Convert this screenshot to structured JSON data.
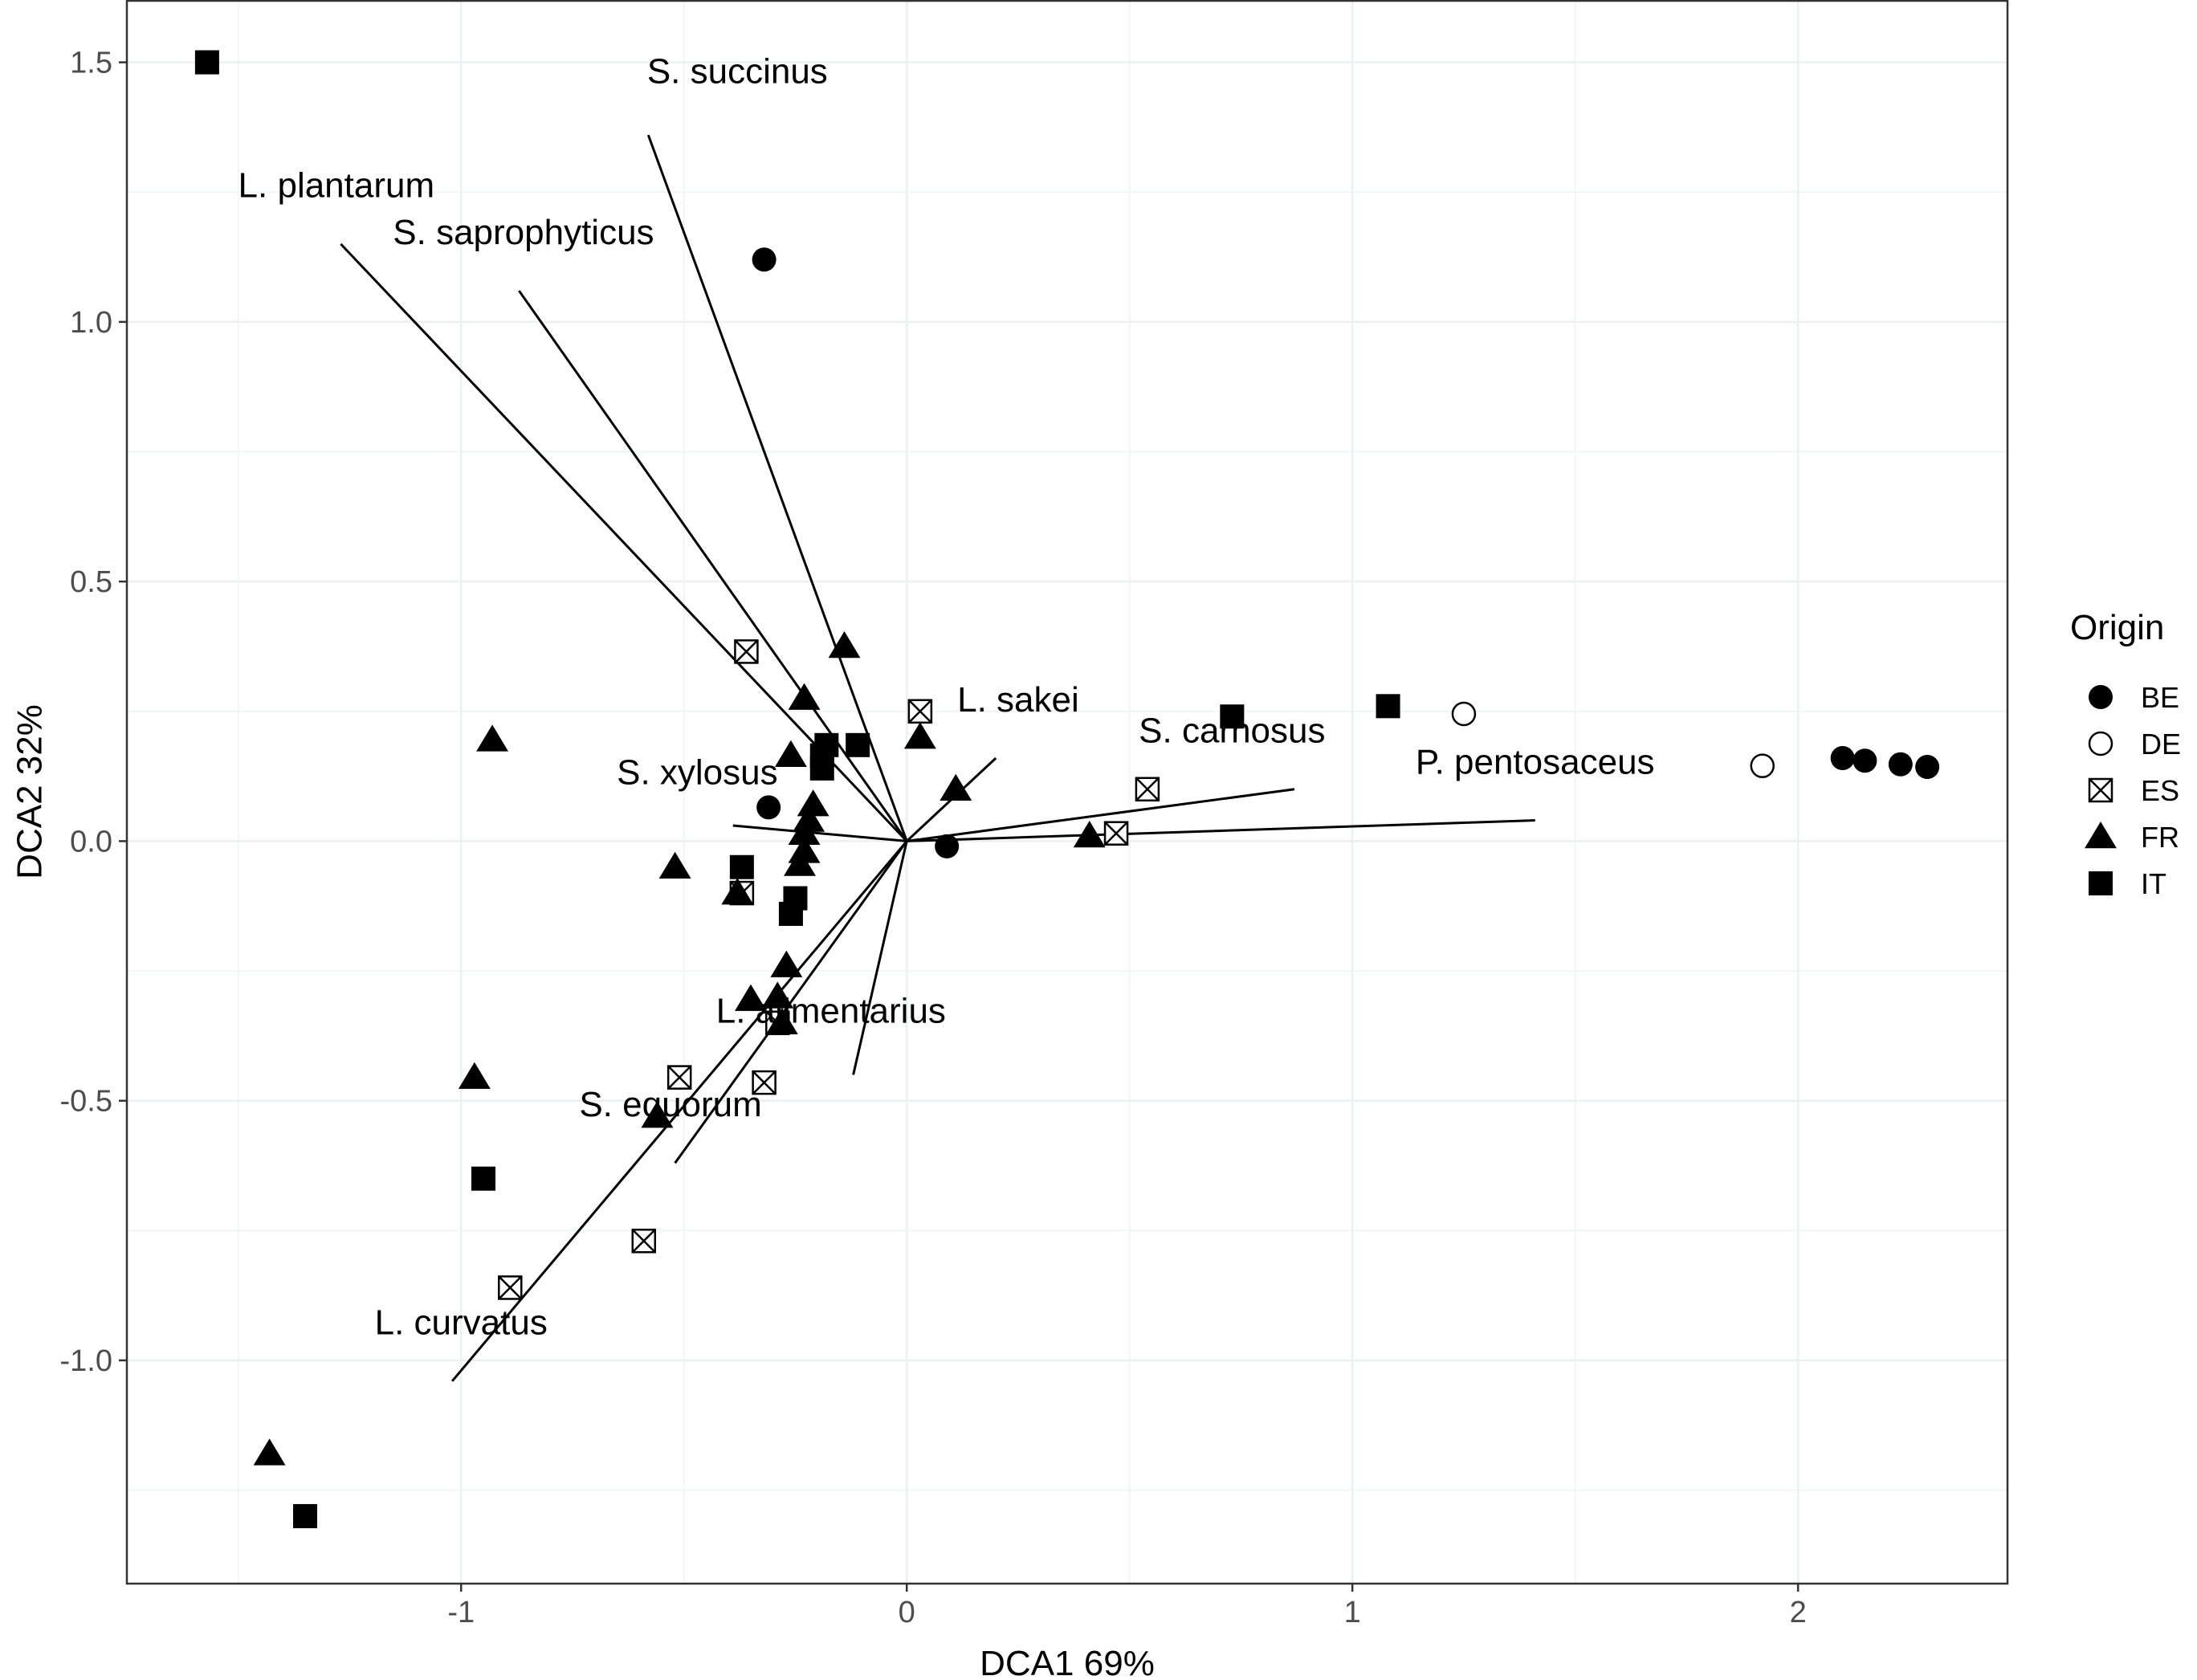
{
  "chart_data": {
    "type": "scatter",
    "subtype": "DCA biplot",
    "title": "",
    "xlabel": "DCA1 69%",
    "ylabel": "DCA2 32%",
    "xlim": [
      -1.75,
      2.47
    ],
    "ylim": [
      -1.43,
      1.62
    ],
    "xticks": [
      -1,
      0,
      1,
      2
    ],
    "xtick_labels": [
      "-1",
      "0",
      "1",
      "2"
    ],
    "yticks": [
      -1.0,
      -0.5,
      0.0,
      0.5,
      1.0,
      1.5
    ],
    "ytick_labels": [
      "-1.0",
      "-0.5",
      "0.0",
      "0.5",
      "1.0",
      "1.5"
    ],
    "grid": true,
    "legend": {
      "title": "Origin",
      "position": "right",
      "entries": [
        {
          "label": "BE",
          "shape": "filled-circle"
        },
        {
          "label": "DE",
          "shape": "open-circle"
        },
        {
          "label": "ES",
          "shape": "crossed-square"
        },
        {
          "label": "FR",
          "shape": "filled-triangle"
        },
        {
          "label": "IT",
          "shape": "filled-square"
        }
      ]
    },
    "vectors": [
      {
        "name": "S. succinus",
        "x": -0.58,
        "y": 1.36,
        "label_x": -0.38,
        "label_y": 1.46
      },
      {
        "name": "L. plantarum",
        "x": -1.27,
        "y": 1.15,
        "label_x": -1.28,
        "label_y": 1.24
      },
      {
        "name": "S. saprophyticus",
        "x": -0.87,
        "y": 1.06,
        "label_x": -0.86,
        "label_y": 1.15
      },
      {
        "name": "L. sakei",
        "x": 0.2,
        "y": 0.16,
        "label_x": 0.25,
        "label_y": 0.25
      },
      {
        "name": "S. carnosus",
        "x": 0.87,
        "y": 0.1,
        "label_x": 0.73,
        "label_y": 0.19
      },
      {
        "name": "P. pentosaceus",
        "x": 1.41,
        "y": 0.04,
        "label_x": 1.41,
        "label_y": 0.13
      },
      {
        "name": "S. xylosus",
        "x": -0.39,
        "y": 0.03,
        "label_x": -0.47,
        "label_y": 0.11
      },
      {
        "name": "L. alimentarius",
        "x": -0.12,
        "y": -0.45,
        "label_x": -0.17,
        "label_y": -0.35
      },
      {
        "name": "S. equorum",
        "x": -0.52,
        "y": -0.62,
        "label_x": -0.53,
        "label_y": -0.53
      },
      {
        "name": "L. curvatus",
        "x": -1.02,
        "y": -1.04,
        "label_x": -1.0,
        "label_y": -0.95
      }
    ],
    "series": [
      {
        "name": "BE",
        "shape": "filled-circle",
        "points": [
          [
            -0.32,
            1.12
          ],
          [
            -0.31,
            0.065
          ],
          [
            0.09,
            -0.01
          ],
          [
            2.1,
            0.16
          ],
          [
            2.15,
            0.155
          ],
          [
            2.23,
            0.148
          ],
          [
            2.29,
            0.143
          ]
        ]
      },
      {
        "name": "DE",
        "shape": "open-circle",
        "points": [
          [
            1.25,
            0.245
          ],
          [
            1.92,
            0.145
          ]
        ]
      },
      {
        "name": "ES",
        "shape": "crossed-square",
        "points": [
          [
            -0.36,
            0.365
          ],
          [
            0.03,
            0.25
          ],
          [
            0.54,
            0.1
          ],
          [
            0.47,
            0.015
          ],
          [
            -0.37,
            -0.1
          ],
          [
            -0.29,
            -0.35
          ],
          [
            -0.51,
            -0.455
          ],
          [
            -0.32,
            -0.465
          ],
          [
            -0.59,
            -0.77
          ],
          [
            -0.89,
            -0.86
          ]
        ]
      },
      {
        "name": "FR",
        "shape": "filled-triangle",
        "points": [
          [
            -0.93,
            0.195
          ],
          [
            -0.14,
            0.375
          ],
          [
            -0.23,
            0.275
          ],
          [
            -0.26,
            0.165
          ],
          [
            0.03,
            0.2
          ],
          [
            0.11,
            0.1
          ],
          [
            -0.21,
            0.07
          ],
          [
            -0.22,
            0.04
          ],
          [
            -0.23,
            0.015
          ],
          [
            -0.23,
            -0.02
          ],
          [
            -0.24,
            -0.045
          ],
          [
            -0.52,
            -0.05
          ],
          [
            0.41,
            0.01
          ],
          [
            -0.38,
            -0.1
          ],
          [
            -0.27,
            -0.24
          ],
          [
            -0.29,
            -0.3
          ],
          [
            -0.35,
            -0.305
          ],
          [
            -0.28,
            -0.35
          ],
          [
            -0.97,
            -0.455
          ],
          [
            -0.56,
            -0.53
          ],
          [
            -1.43,
            -1.18
          ]
        ]
      },
      {
        "name": "IT",
        "shape": "filled-square",
        "points": [
          [
            -1.57,
            1.5
          ],
          [
            -0.18,
            0.185
          ],
          [
            -0.11,
            0.185
          ],
          [
            -0.19,
            0.165
          ],
          [
            -0.19,
            0.14
          ],
          [
            -0.37,
            -0.05
          ],
          [
            -0.25,
            -0.11
          ],
          [
            -0.26,
            -0.14
          ],
          [
            0.73,
            0.24
          ],
          [
            1.08,
            0.26
          ],
          [
            -0.95,
            -0.65
          ],
          [
            -1.35,
            -1.3
          ]
        ]
      }
    ]
  }
}
